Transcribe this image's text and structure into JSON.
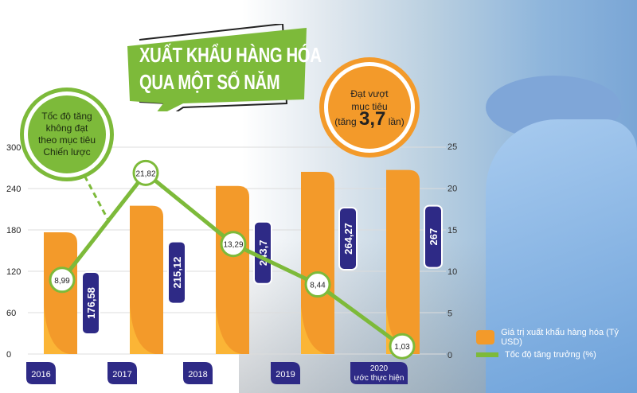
{
  "title": {
    "line1": "XUẤT KHẨU HÀNG HÓA",
    "line2": "QUA MỘT SỐ NĂM"
  },
  "callouts": {
    "green": [
      "Tốc độ tăng",
      "không đạt",
      "theo mục tiêu",
      "Chiến lược"
    ],
    "orange": {
      "line1": "Đạt vượt",
      "line2": "mục tiêu",
      "prefix": "(tăng",
      "value": "3,7",
      "suffix": "lần)"
    }
  },
  "colors": {
    "bar": "#f39a2a",
    "line": "#7dba3a",
    "label_box": "#2e2a86",
    "title_bg": "#7dba3a"
  },
  "chart_data": {
    "type": "bar+line",
    "categories": [
      "2016",
      "2017",
      "2018",
      "2019",
      "2020\nước thực hiện"
    ],
    "category_labels": [
      [
        "2016"
      ],
      [
        "2017"
      ],
      [
        "2018"
      ],
      [
        "2019"
      ],
      [
        "2020",
        "ước thực hiện"
      ]
    ],
    "series": [
      {
        "name": "Giá trị xuất khẩu hàng hóa (Tỷ USD)",
        "type": "bar",
        "axis": "left",
        "values": [
          176.58,
          215.12,
          243.7,
          264.27,
          267
        ],
        "labels": [
          "176,58",
          "215,12",
          "243,7",
          "264,27",
          "267"
        ]
      },
      {
        "name": "Tốc độ tăng trưởng (%)",
        "type": "line",
        "axis": "right",
        "values": [
          8.99,
          21.82,
          13.29,
          8.44,
          1.03
        ],
        "labels": [
          "8,99",
          "21,82",
          "13,29",
          "8,44",
          "1,03"
        ]
      }
    ],
    "left_axis": {
      "range": [
        0,
        300
      ],
      "ticks": [
        "0",
        "60",
        "120",
        "180",
        "240",
        "300"
      ]
    },
    "right_axis": {
      "range": [
        0,
        25
      ],
      "ticks": [
        "0",
        "5",
        "10",
        "15",
        "20",
        "25"
      ]
    },
    "grid": true,
    "legend": "bottom-right"
  }
}
